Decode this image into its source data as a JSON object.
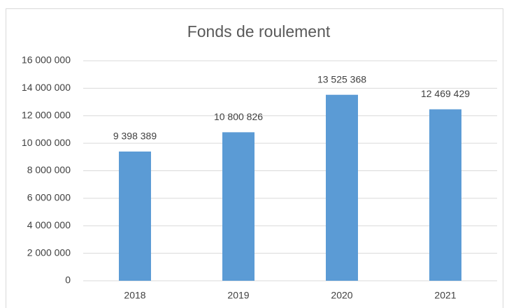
{
  "chart_data": {
    "type": "bar",
    "title": "Fonds de roulement",
    "categories": [
      "2018",
      "2019",
      "2020",
      "2021"
    ],
    "values": [
      9398389,
      10800826,
      13525368,
      12469429
    ],
    "value_labels": [
      "9 398 389",
      "10 800 826",
      "13 525 368",
      "12 469 429"
    ],
    "color": "#5b9bd5",
    "ylim": [
      0,
      16000000
    ],
    "yticks": [
      0,
      {
        "value": 2000000,
        "label": "2 000 000"
      },
      {
        "value": 4000000,
        "label": "4 000 000"
      },
      {
        "value": 6000000,
        "label": "6 000 000"
      },
      {
        "value": 8000000,
        "label": "8 000 000"
      },
      {
        "value": 10000000,
        "label": "10 000 000"
      },
      {
        "value": 12000000,
        "label": "12 000 000"
      },
      {
        "value": 14000000,
        "label": "14 000 000"
      },
      {
        "value": 16000000,
        "label": "16 000 000"
      }
    ],
    "grid": true
  }
}
